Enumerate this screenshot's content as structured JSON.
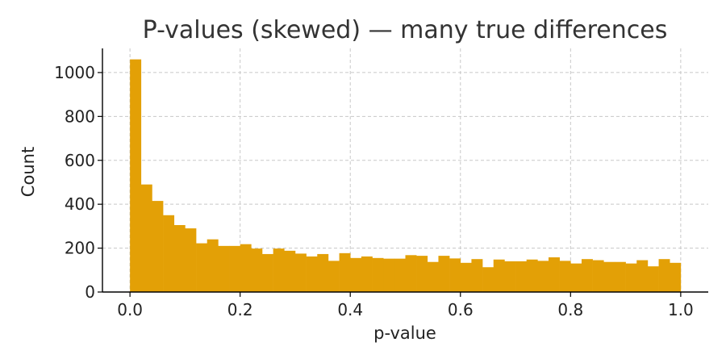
{
  "chart_data": {
    "type": "bar",
    "title": "P-values (skewed) — many true differences",
    "xlabel": "p-value",
    "ylabel": "Count",
    "xlim": [
      -0.05,
      1.05
    ],
    "ylim": [
      0,
      1110
    ],
    "grid": true,
    "bar_color": "#E3A006",
    "xticks": [
      0.0,
      0.2,
      0.4,
      0.6,
      0.8,
      1.0
    ],
    "xtick_labels": [
      "0.0",
      "0.2",
      "0.4",
      "0.6",
      "0.8",
      "1.0"
    ],
    "yticks": [
      0,
      200,
      400,
      600,
      800,
      1000
    ],
    "ytick_labels": [
      "0",
      "200",
      "400",
      "600",
      "800",
      "1000"
    ],
    "bin_edges": [
      0.0,
      0.02,
      0.04,
      0.06,
      0.08,
      0.1,
      0.12,
      0.14,
      0.16,
      0.18,
      0.2,
      0.22,
      0.24,
      0.26,
      0.28,
      0.3,
      0.32,
      0.34,
      0.36,
      0.38,
      0.4,
      0.42,
      0.44,
      0.46,
      0.48,
      0.5,
      0.52,
      0.54,
      0.56,
      0.58,
      0.6,
      0.62,
      0.64,
      0.66,
      0.68,
      0.7,
      0.72,
      0.74,
      0.76,
      0.78,
      0.8,
      0.82,
      0.84,
      0.86,
      0.88,
      0.9,
      0.92,
      0.94,
      0.96,
      0.98,
      1.0
    ],
    "values": [
      1060,
      490,
      415,
      350,
      305,
      290,
      222,
      240,
      210,
      210,
      218,
      198,
      173,
      198,
      188,
      175,
      162,
      173,
      142,
      177,
      155,
      162,
      155,
      152,
      152,
      168,
      165,
      137,
      165,
      153,
      133,
      150,
      113,
      148,
      140,
      140,
      148,
      142,
      158,
      142,
      130,
      150,
      145,
      137,
      137,
      130,
      145,
      117,
      150,
      133
    ]
  }
}
